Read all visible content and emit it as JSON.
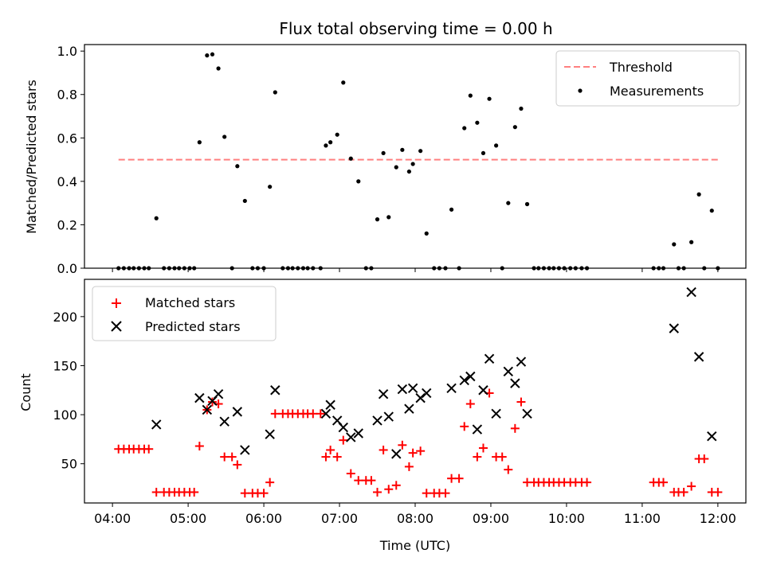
{
  "chart_data": [
    {
      "type": "scatter",
      "title": "Flux total observing time = 0.00 h",
      "xlabel": "",
      "ylabel": "Matched/Predicted stars",
      "xlim": [
        3.63,
        12.37
      ],
      "ylim": [
        0,
        1.03
      ],
      "yticks": [
        0.0,
        0.2,
        0.4,
        0.6,
        0.8,
        1.0
      ],
      "ytick_labels": [
        "0.0",
        "0.2",
        "0.4",
        "0.6",
        "0.8",
        "1.0"
      ],
      "xticks": [
        4,
        5,
        6,
        7,
        8,
        9,
        10,
        11,
        12
      ],
      "legend_position": "upper right",
      "legend": [
        {
          "label": "Threshold",
          "marker": "dashed-line",
          "color": "#ff8080"
        },
        {
          "label": "Measurements",
          "marker": "dot",
          "color": "#000000"
        }
      ],
      "threshold": {
        "name": "Threshold",
        "y": 0.5,
        "x_range": [
          4.08,
          12.0
        ],
        "color": "#ff8080",
        "style": "dashed"
      },
      "series": [
        {
          "name": "Measurements",
          "marker": "dot",
          "color": "#000000",
          "points": [
            [
              4.08,
              0
            ],
            [
              4.15,
              0
            ],
            [
              4.22,
              0
            ],
            [
              4.28,
              0
            ],
            [
              4.35,
              0
            ],
            [
              4.42,
              0
            ],
            [
              4.48,
              0
            ],
            [
              4.58,
              0.23
            ],
            [
              4.68,
              0
            ],
            [
              4.75,
              0
            ],
            [
              4.82,
              0
            ],
            [
              4.88,
              0
            ],
            [
              4.95,
              0
            ],
            [
              5.02,
              0
            ],
            [
              5.08,
              0
            ],
            [
              5.15,
              0.58
            ],
            [
              5.25,
              0.98
            ],
            [
              5.32,
              0.985
            ],
            [
              5.4,
              0.92
            ],
            [
              5.48,
              0.605
            ],
            [
              5.58,
              0
            ],
            [
              5.65,
              0.47
            ],
            [
              5.75,
              0.31
            ],
            [
              5.85,
              0
            ],
            [
              5.92,
              0
            ],
            [
              6.0,
              0
            ],
            [
              6.08,
              0.375
            ],
            [
              6.15,
              0.81
            ],
            [
              6.25,
              0
            ],
            [
              6.32,
              0
            ],
            [
              6.38,
              0
            ],
            [
              6.45,
              0
            ],
            [
              6.52,
              0
            ],
            [
              6.58,
              0
            ],
            [
              6.65,
              0
            ],
            [
              6.75,
              0
            ],
            [
              6.82,
              0.565
            ],
            [
              6.88,
              0.58
            ],
            [
              6.97,
              0.615
            ],
            [
              7.05,
              0.855
            ],
            [
              7.15,
              0.505
            ],
            [
              7.25,
              0.4
            ],
            [
              7.35,
              0
            ],
            [
              7.42,
              0
            ],
            [
              7.5,
              0.225
            ],
            [
              7.58,
              0.53
            ],
            [
              7.65,
              0.235
            ],
            [
              7.75,
              0.465
            ],
            [
              7.83,
              0.545
            ],
            [
              7.92,
              0.445
            ],
            [
              7.97,
              0.48
            ],
            [
              8.07,
              0.54
            ],
            [
              8.15,
              0.16
            ],
            [
              8.25,
              0
            ],
            [
              8.32,
              0
            ],
            [
              8.4,
              0
            ],
            [
              8.48,
              0.27
            ],
            [
              8.58,
              0
            ],
            [
              8.65,
              0.645
            ],
            [
              8.73,
              0.795
            ],
            [
              8.82,
              0.67
            ],
            [
              8.9,
              0.53
            ],
            [
              8.98,
              0.78
            ],
            [
              9.07,
              0.565
            ],
            [
              9.15,
              0
            ],
            [
              9.23,
              0.3
            ],
            [
              9.32,
              0.65
            ],
            [
              9.4,
              0.735
            ],
            [
              9.48,
              0.295
            ],
            [
              9.57,
              0
            ],
            [
              9.63,
              0
            ],
            [
              9.7,
              0
            ],
            [
              9.77,
              0
            ],
            [
              9.83,
              0
            ],
            [
              9.9,
              0
            ],
            [
              9.97,
              0
            ],
            [
              10.05,
              0
            ],
            [
              10.12,
              0
            ],
            [
              10.2,
              0
            ],
            [
              10.27,
              0
            ],
            [
              11.15,
              0
            ],
            [
              11.22,
              0
            ],
            [
              11.28,
              0
            ],
            [
              11.42,
              0.11
            ],
            [
              11.48,
              0
            ],
            [
              11.55,
              0
            ],
            [
              11.65,
              0.12
            ],
            [
              11.75,
              0.34
            ],
            [
              11.82,
              0
            ],
            [
              11.92,
              0.265
            ],
            [
              12.0,
              0
            ]
          ]
        }
      ]
    },
    {
      "type": "scatter",
      "title": "",
      "xlabel": "Time (UTC)",
      "ylabel": "Count",
      "xlim": [
        3.63,
        12.37
      ],
      "ylim": [
        10,
        238
      ],
      "yticks": [
        50,
        100,
        150,
        200
      ],
      "ytick_labels": [
        "50",
        "100",
        "150",
        "200"
      ],
      "xticks": [
        4,
        5,
        6,
        7,
        8,
        9,
        10,
        11,
        12
      ],
      "xtick_labels": [
        "04:00",
        "05:00",
        "06:00",
        "07:00",
        "08:00",
        "09:00",
        "10:00",
        "11:00",
        "12:00"
      ],
      "legend_position": "upper left",
      "legend": [
        {
          "label": "Matched stars",
          "marker": "plus",
          "color": "#ff0000"
        },
        {
          "label": "Predicted stars",
          "marker": "x",
          "color": "#000000"
        }
      ],
      "series": [
        {
          "name": "Matched stars",
          "marker": "plus",
          "color": "#ff0000",
          "points": [
            [
              4.08,
              65
            ],
            [
              4.15,
              65
            ],
            [
              4.22,
              65
            ],
            [
              4.28,
              65
            ],
            [
              4.35,
              65
            ],
            [
              4.42,
              65
            ],
            [
              4.48,
              65
            ],
            [
              4.58,
              21
            ],
            [
              4.68,
              21
            ],
            [
              4.75,
              21
            ],
            [
              4.82,
              21
            ],
            [
              4.88,
              21
            ],
            [
              4.95,
              21
            ],
            [
              5.02,
              21
            ],
            [
              5.08,
              21
            ],
            [
              5.15,
              68
            ],
            [
              5.25,
              105
            ],
            [
              5.32,
              113
            ],
            [
              5.4,
              111
            ],
            [
              5.48,
              57
            ],
            [
              5.58,
              57
            ],
            [
              5.65,
              49
            ],
            [
              5.75,
              20
            ],
            [
              5.85,
              20
            ],
            [
              5.92,
              20
            ],
            [
              6.0,
              20
            ],
            [
              6.08,
              31
            ],
            [
              6.15,
              101
            ],
            [
              6.25,
              101
            ],
            [
              6.32,
              101
            ],
            [
              6.38,
              101
            ],
            [
              6.45,
              101
            ],
            [
              6.52,
              101
            ],
            [
              6.58,
              101
            ],
            [
              6.65,
              101
            ],
            [
              6.75,
              101
            ],
            [
              6.82,
              57
            ],
            [
              6.88,
              64
            ],
            [
              6.97,
              57
            ],
            [
              7.05,
              74
            ],
            [
              7.15,
              40
            ],
            [
              7.25,
              33
            ],
            [
              7.35,
              33
            ],
            [
              7.42,
              33
            ],
            [
              7.5,
              21
            ],
            [
              7.58,
              64
            ],
            [
              7.65,
              24
            ],
            [
              7.75,
              28
            ],
            [
              7.83,
              69
            ],
            [
              7.92,
              47
            ],
            [
              7.97,
              61
            ],
            [
              8.07,
              63
            ],
            [
              8.15,
              20
            ],
            [
              8.25,
              20
            ],
            [
              8.32,
              20
            ],
            [
              8.4,
              20
            ],
            [
              8.48,
              35
            ],
            [
              8.58,
              35
            ],
            [
              8.65,
              88
            ],
            [
              8.73,
              111
            ],
            [
              8.82,
              57
            ],
            [
              8.9,
              66
            ],
            [
              8.98,
              122
            ],
            [
              9.07,
              57
            ],
            [
              9.15,
              57
            ],
            [
              9.23,
              44
            ],
            [
              9.32,
              86
            ],
            [
              9.4,
              113
            ],
            [
              9.48,
              31
            ],
            [
              9.57,
              31
            ],
            [
              9.63,
              31
            ],
            [
              9.7,
              31
            ],
            [
              9.77,
              31
            ],
            [
              9.83,
              31
            ],
            [
              9.9,
              31
            ],
            [
              9.97,
              31
            ],
            [
              10.05,
              31
            ],
            [
              10.12,
              31
            ],
            [
              10.2,
              31
            ],
            [
              10.27,
              31
            ],
            [
              11.15,
              31
            ],
            [
              11.22,
              31
            ],
            [
              11.28,
              31
            ],
            [
              11.42,
              21
            ],
            [
              11.48,
              21
            ],
            [
              11.55,
              21
            ],
            [
              11.65,
              27
            ],
            [
              11.75,
              55
            ],
            [
              11.82,
              55
            ],
            [
              11.92,
              21
            ],
            [
              12.0,
              21
            ]
          ]
        },
        {
          "name": "Predicted stars",
          "marker": "x",
          "color": "#000000",
          "points": [
            [
              4.58,
              90
            ],
            [
              5.15,
              117
            ],
            [
              5.25,
              105
            ],
            [
              5.32,
              114
            ],
            [
              5.4,
              121
            ],
            [
              5.48,
              93
            ],
            [
              5.65,
              103
            ],
            [
              5.75,
              64
            ],
            [
              6.08,
              80
            ],
            [
              6.15,
              125
            ],
            [
              6.82,
              101
            ],
            [
              6.88,
              110
            ],
            [
              6.97,
              94
            ],
            [
              7.05,
              87
            ],
            [
              7.15,
              77
            ],
            [
              7.25,
              81
            ],
            [
              7.5,
              94
            ],
            [
              7.58,
              121
            ],
            [
              7.65,
              98
            ],
            [
              7.75,
              60
            ],
            [
              7.83,
              126
            ],
            [
              7.92,
              106
            ],
            [
              7.97,
              127
            ],
            [
              8.07,
              117
            ],
            [
              8.15,
              122
            ],
            [
              8.48,
              127
            ],
            [
              8.65,
              135
            ],
            [
              8.73,
              139
            ],
            [
              8.82,
              85
            ],
            [
              8.9,
              125
            ],
            [
              8.98,
              157
            ],
            [
              9.07,
              101
            ],
            [
              9.23,
              144
            ],
            [
              9.32,
              132
            ],
            [
              9.4,
              154
            ],
            [
              9.48,
              101
            ],
            [
              11.42,
              188
            ],
            [
              11.65,
              225
            ],
            [
              11.75,
              159
            ],
            [
              11.92,
              78
            ]
          ]
        }
      ]
    }
  ]
}
